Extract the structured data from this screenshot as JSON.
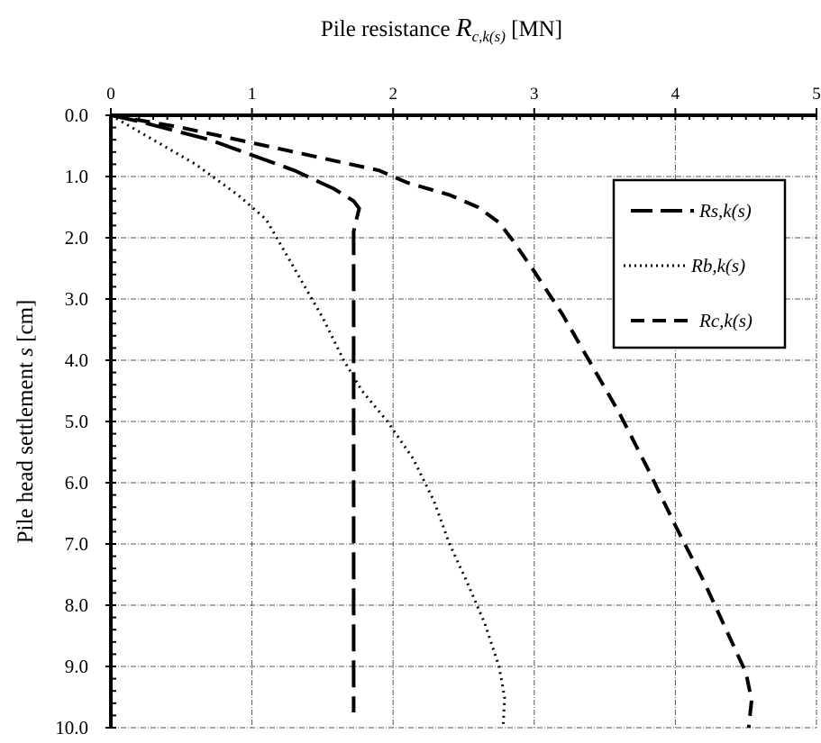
{
  "chart_data": {
    "type": "line",
    "title": "",
    "x_axis": {
      "label_main": "Pile resistance ",
      "label_symbol": "R",
      "label_subscript": "c,k(s)",
      "label_unit": " [MN]",
      "position": "top",
      "range": [
        0,
        5
      ],
      "ticks": [
        "0",
        "1",
        "2",
        "3",
        "4",
        "5"
      ]
    },
    "y_axis": {
      "label_main": "Pile head settlement ",
      "label_symbol": "s",
      "label_unit": " [cm]",
      "range": [
        0,
        10
      ],
      "inverted": true,
      "ticks": [
        "0.0",
        "1.0",
        "2.0",
        "3.0",
        "4.0",
        "5.0",
        "6.0",
        "7.0",
        "8.0",
        "9.0",
        "10.0"
      ]
    },
    "grid": true,
    "legend_position": "top-right",
    "series": [
      {
        "name": "Rs,k(s)",
        "style": "long-dash",
        "points": [
          [
            0,
            0
          ],
          [
            0.2,
            0.1
          ],
          [
            0.7,
            0.4
          ],
          [
            1.3,
            0.9
          ],
          [
            1.58,
            1.2
          ],
          [
            1.72,
            1.4
          ],
          [
            1.76,
            1.52
          ],
          [
            1.74,
            1.7
          ],
          [
            1.72,
            1.9
          ],
          [
            1.72,
            3.0
          ],
          [
            1.72,
            5.0
          ],
          [
            1.72,
            7.0
          ],
          [
            1.72,
            9.0
          ],
          [
            1.72,
            9.75
          ]
        ]
      },
      {
        "name": "Rb,k(s)",
        "style": "dotted",
        "points": [
          [
            0,
            0
          ],
          [
            0.3,
            0.4
          ],
          [
            0.6,
            0.8
          ],
          [
            0.9,
            1.3
          ],
          [
            1.1,
            1.7
          ],
          [
            1.3,
            2.5
          ],
          [
            1.5,
            3.3
          ],
          [
            1.65,
            4.0
          ],
          [
            1.78,
            4.5
          ],
          [
            1.96,
            5.0
          ],
          [
            2.14,
            5.6
          ],
          [
            2.29,
            6.3
          ],
          [
            2.4,
            7.0
          ],
          [
            2.52,
            7.6
          ],
          [
            2.65,
            8.3
          ],
          [
            2.75,
            9.0
          ],
          [
            2.79,
            9.5
          ],
          [
            2.78,
            10.0
          ]
        ]
      },
      {
        "name": "Rc,k(s)",
        "style": "short-dash",
        "points": [
          [
            0,
            0
          ],
          [
            0.5,
            0.2
          ],
          [
            1.0,
            0.45
          ],
          [
            1.5,
            0.7
          ],
          [
            1.9,
            0.9
          ],
          [
            2.1,
            1.1
          ],
          [
            2.4,
            1.3
          ],
          [
            2.6,
            1.5
          ],
          [
            2.75,
            1.75
          ],
          [
            2.85,
            2.05
          ],
          [
            3.0,
            2.55
          ],
          [
            3.2,
            3.25
          ],
          [
            3.4,
            4.05
          ],
          [
            3.6,
            4.85
          ],
          [
            3.8,
            5.75
          ],
          [
            4.0,
            6.7
          ],
          [
            4.2,
            7.6
          ],
          [
            4.38,
            8.5
          ],
          [
            4.5,
            9.1
          ],
          [
            4.54,
            9.55
          ],
          [
            4.52,
            10.0
          ]
        ]
      }
    ]
  }
}
